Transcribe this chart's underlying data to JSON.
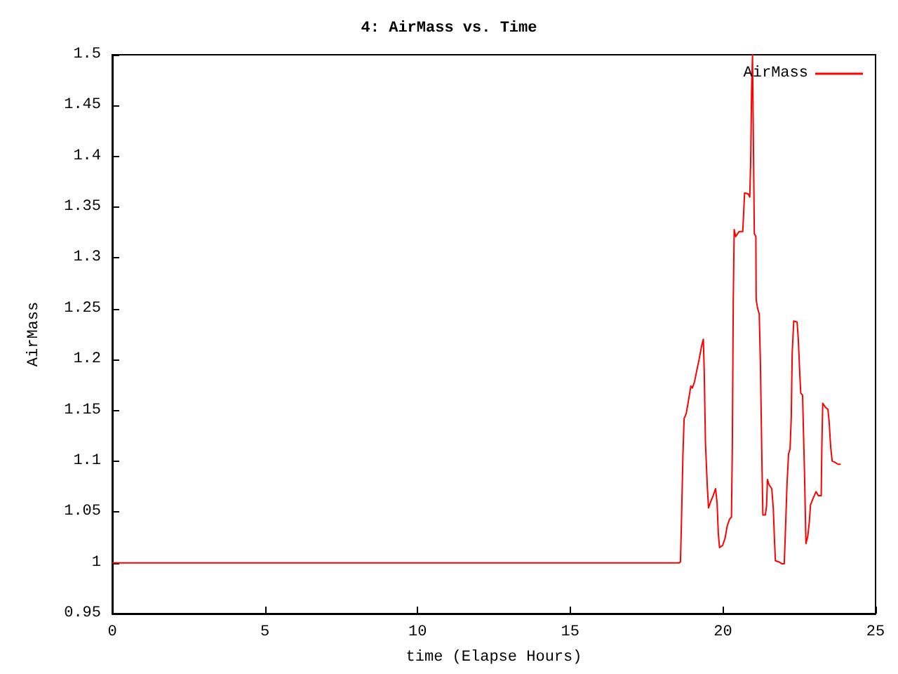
{
  "chart_data": {
    "type": "line",
    "title": "4: AirMass vs. Time",
    "xlabel": "time (Elapse Hours)",
    "ylabel": "AirMass",
    "xlim": [
      0,
      25
    ],
    "xticks": [
      0,
      5,
      10,
      15,
      20,
      25
    ],
    "ylim": [
      0.95,
      1.5
    ],
    "yticks": [
      0.95,
      1,
      1.05,
      1.1,
      1.15,
      1.2,
      1.25,
      1.3,
      1.35,
      1.4,
      1.45,
      1.5
    ],
    "grid": false,
    "legend": "top right",
    "marker": "none",
    "line_style": "solid",
    "series": [
      {
        "name": "AirMass",
        "color": "#ff0000",
        "x": [
          0,
          18.57,
          18.61,
          18.64,
          18.69,
          18.73,
          18.8,
          18.87,
          18.95,
          19.0,
          19.07,
          19.15,
          19.22,
          19.3,
          19.36,
          19.39,
          19.43,
          19.49,
          19.53,
          19.61,
          19.68,
          19.76,
          19.81,
          19.85,
          19.89,
          19.99,
          20.07,
          20.14,
          20.22,
          20.28,
          20.31,
          20.34,
          20.37,
          20.42,
          20.53,
          20.65,
          20.68,
          20.71,
          20.83,
          20.88,
          20.91,
          20.94,
          20.97,
          20.99,
          21.01,
          21.03,
          21.08,
          21.09,
          21.14,
          21.19,
          21.23,
          21.28,
          21.31,
          21.39,
          21.43,
          21.46,
          21.51,
          21.6,
          21.65,
          21.69,
          21.72,
          21.83,
          21.94,
          22.01,
          22.04,
          22.1,
          22.15,
          22.2,
          22.24,
          22.27,
          22.32,
          22.43,
          22.47,
          22.52,
          22.55,
          22.61,
          22.64,
          22.67,
          22.72,
          22.78,
          22.83,
          22.87,
          22.95,
          23.05,
          23.13,
          23.22,
          23.24,
          23.27,
          23.36,
          23.44,
          23.48,
          23.53,
          23.58,
          23.67,
          23.77,
          23.86
        ],
        "values": [
          1.0,
          1.0,
          1.001,
          1.036,
          1.105,
          1.142,
          1.147,
          1.159,
          1.174,
          1.172,
          1.178,
          1.19,
          1.2,
          1.213,
          1.22,
          1.187,
          1.117,
          1.075,
          1.054,
          1.061,
          1.066,
          1.073,
          1.059,
          1.029,
          1.015,
          1.017,
          1.024,
          1.036,
          1.043,
          1.045,
          1.116,
          1.257,
          1.328,
          1.321,
          1.326,
          1.326,
          1.344,
          1.364,
          1.363,
          1.36,
          1.395,
          1.464,
          1.5,
          1.441,
          1.441,
          1.324,
          1.321,
          1.259,
          1.25,
          1.245,
          1.195,
          1.096,
          1.047,
          1.047,
          1.056,
          1.082,
          1.077,
          1.073,
          1.054,
          1.022,
          1.002,
          1.001,
          0.999,
          0.999,
          1.024,
          1.077,
          1.107,
          1.112,
          1.144,
          1.206,
          1.238,
          1.237,
          1.22,
          1.185,
          1.167,
          1.165,
          1.128,
          1.093,
          1.019,
          1.026,
          1.04,
          1.057,
          1.063,
          1.07,
          1.066,
          1.066,
          1.112,
          1.157,
          1.153,
          1.151,
          1.139,
          1.114,
          1.1,
          1.099,
          1.097,
          1.097
        ]
      }
    ]
  }
}
